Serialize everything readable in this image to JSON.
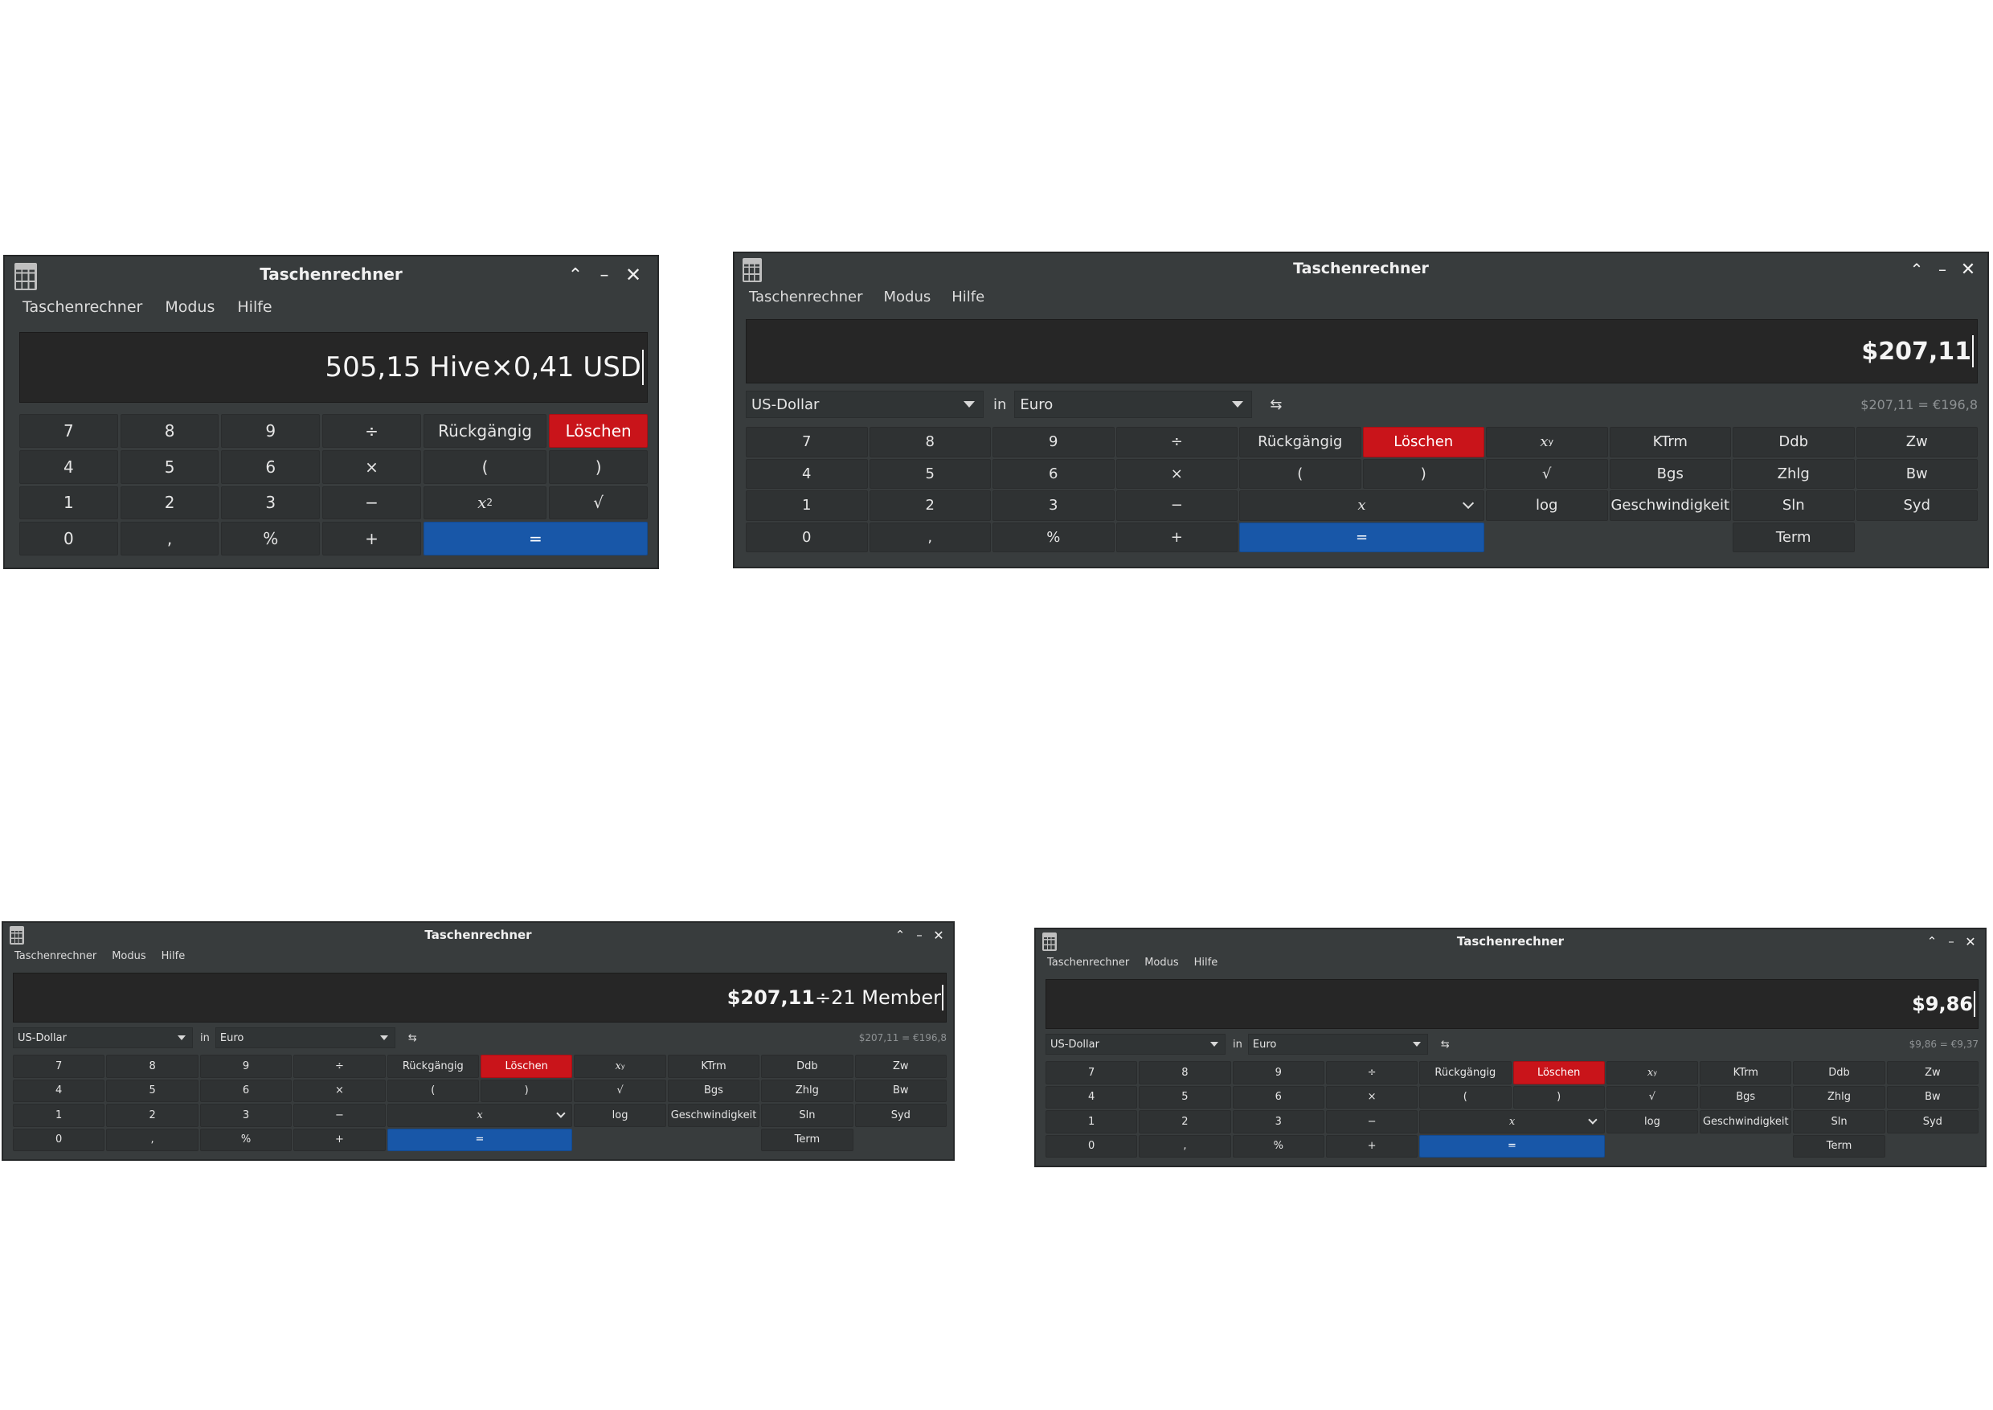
{
  "app": {
    "title": "Taschenrechner",
    "menu": [
      "Taschenrechner",
      "Modus",
      "Hilfe"
    ],
    "window_controls": [
      "chevron-up-icon",
      "minimize-icon",
      "close-icon"
    ],
    "colors": {
      "window_bg": "#383c3d",
      "display_bg": "#262626",
      "key_bg": "#2f3233",
      "clear_red": "#c9141a",
      "equals_blue": "#1857a8",
      "text": "#e6e6e6"
    }
  },
  "windows": [
    {
      "id": "basic",
      "display": {
        "bold": "",
        "normal": "505,15 Hive×0,41 USD"
      }
    },
    {
      "id": "fin1",
      "display": {
        "bold": "$207,11",
        "normal": ""
      },
      "currency": {
        "from": "US-Dollar",
        "in_label": "in",
        "to": "Euro",
        "swap": "⇆",
        "result": "$207,11 = €196,8"
      }
    },
    {
      "id": "fin2",
      "display": {
        "bold": "$207,11",
        "normal": "÷21 Member"
      },
      "currency": {
        "from": "US-Dollar",
        "in_label": "in",
        "to": "Euro",
        "swap": "⇆",
        "result": "$207,11 = €196,8"
      }
    },
    {
      "id": "fin3",
      "display": {
        "bold": "$9,86",
        "normal": ""
      },
      "currency": {
        "from": "US-Dollar",
        "in_label": "in",
        "to": "Euro",
        "swap": "⇆",
        "result": "$9,86 = €9,37"
      }
    }
  ],
  "keys": {
    "digits": [
      "7",
      "8",
      "9",
      "4",
      "5",
      "6",
      "1",
      "2",
      "3",
      "0"
    ],
    "comma": ",",
    "percent": "%",
    "divide": "÷",
    "multiply": "×",
    "minus": "−",
    "plus": "+",
    "undo": "Rückgängig",
    "clear": "Löschen",
    "paren_open": "(",
    "paren_close": ")",
    "square_base": "x",
    "square_exp": "2",
    "sqrt": "√",
    "equals": "=",
    "power_base": "x",
    "power_exp": "y",
    "var_x": "x",
    "log": "log",
    "ktrm": "KTrm",
    "ddb": "Ddb",
    "zw": "Zw",
    "bgs": "Bgs",
    "zhlg": "Zhlg",
    "bw": "Bw",
    "speed": "Geschwindigkeit",
    "sln": "Sln",
    "syd": "Syd",
    "term": "Term"
  }
}
